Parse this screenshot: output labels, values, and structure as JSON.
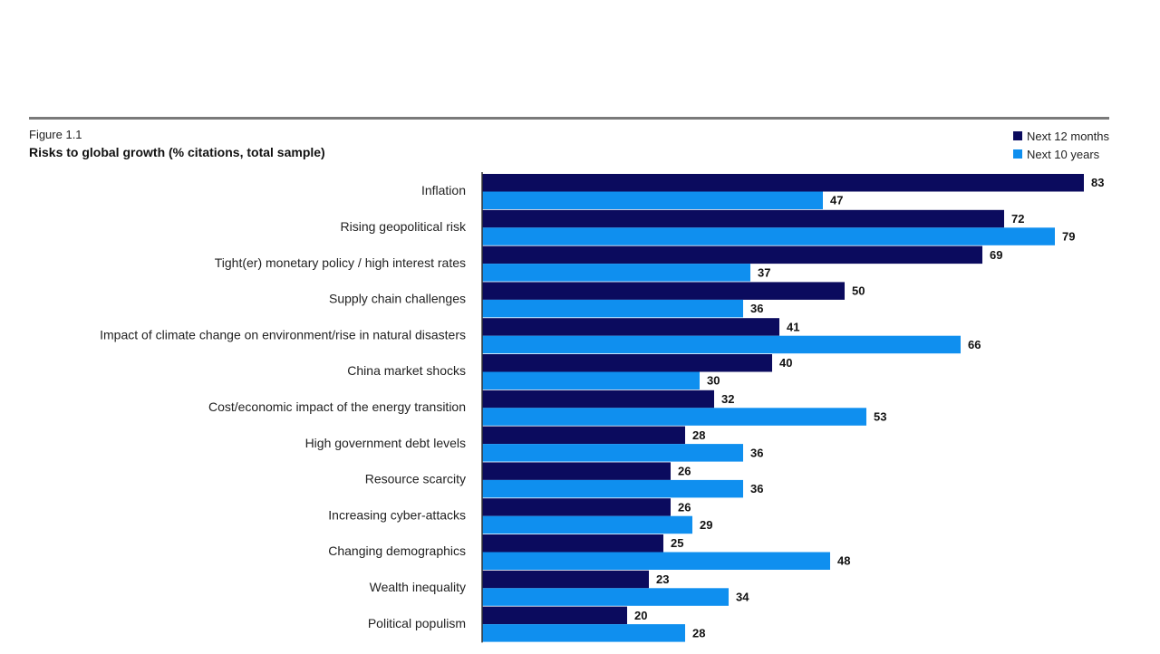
{
  "figure": {
    "label": "Figure 1.1",
    "title": "Risks to global growth (% citations, total sample)"
  },
  "legend": [
    {
      "name": "Next 12 months",
      "color": "#0b0b5e"
    },
    {
      "name": "Next 10 years",
      "color": "#0f8fef"
    }
  ],
  "chart_data": {
    "type": "bar",
    "orientation": "horizontal",
    "title": "Risks to global growth (% citations, total sample)",
    "categories": [
      "Inflation",
      "Rising geopolitical risk",
      "Tight(er) monetary policy / high interest rates",
      "Supply chain challenges",
      "Impact of climate change on environment/rise in natural disasters",
      "China market shocks",
      "Cost/economic impact of the energy transition",
      "High government debt levels",
      "Resource scarcity",
      "Increasing cyber-attacks",
      "Changing demographics",
      "Wealth inequality",
      "Political populism"
    ],
    "series": [
      {
        "name": "Next 12 months",
        "color": "#0b0b5e",
        "values": [
          83,
          72,
          69,
          50,
          41,
          40,
          32,
          28,
          26,
          26,
          25,
          23,
          20
        ]
      },
      {
        "name": "Next 10 years",
        "color": "#0f8fef",
        "values": [
          47,
          79,
          37,
          36,
          66,
          30,
          53,
          36,
          36,
          29,
          48,
          34,
          28
        ]
      }
    ],
    "xlim": [
      0,
      83
    ],
    "grid": false,
    "legend_position": "top-right",
    "data_labels": true
  }
}
